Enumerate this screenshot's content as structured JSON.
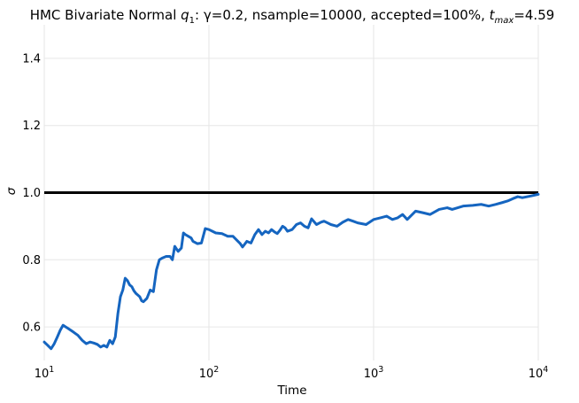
{
  "chart_data": {
    "type": "line",
    "title": {
      "prefix": "HMC Bivariate Normal ",
      "q_base": "q",
      "q_sub": "1",
      "middle": ": γ=0.2, nsample=10000, accepted=100%, ",
      "t_base": "t",
      "t_sub": "max",
      "suffix": "=4.59"
    },
    "xlabel": "Time",
    "ylabel": "σ",
    "xscale": "log",
    "xlim": [
      10,
      10000
    ],
    "ylim": [
      0.5,
      1.5
    ],
    "xticks": [
      {
        "value": 10,
        "base": "10",
        "exp": "1"
      },
      {
        "value": 100,
        "base": "10",
        "exp": "2"
      },
      {
        "value": 1000,
        "base": "10",
        "exp": "3"
      },
      {
        "value": 10000,
        "base": "10",
        "exp": "4"
      }
    ],
    "yticks": [
      {
        "value": 0.6,
        "label": "0.6"
      },
      {
        "value": 0.8,
        "label": "0.8"
      },
      {
        "value": 1.0,
        "label": "1.0"
      },
      {
        "value": 1.2,
        "label": "1.2"
      },
      {
        "value": 1.4,
        "label": "1.4"
      }
    ],
    "grid": true,
    "reference_line": {
      "y": 1.0,
      "color": "#000000"
    },
    "series": [
      {
        "name": "sigma",
        "color": "#1565c0",
        "x": [
          10,
          10.5,
          11,
          11.5,
          12,
          12.5,
          13,
          13.5,
          14,
          15,
          16,
          17,
          18,
          19,
          20,
          21,
          22,
          23,
          24,
          25,
          26,
          27,
          28,
          29,
          30,
          31,
          32,
          33,
          34,
          35,
          36,
          37,
          38,
          39,
          40,
          42,
          44,
          46,
          48,
          50,
          52,
          55,
          58,
          60,
          62,
          65,
          68,
          70,
          72,
          75,
          78,
          80,
          85,
          90,
          95,
          100,
          105,
          110,
          120,
          130,
          140,
          150,
          155,
          160,
          170,
          180,
          190,
          200,
          210,
          220,
          230,
          240,
          250,
          260,
          270,
          280,
          290,
          300,
          320,
          340,
          360,
          380,
          400,
          420,
          450,
          480,
          500,
          550,
          600,
          650,
          700,
          750,
          800,
          900,
          1000,
          1100,
          1200,
          1300,
          1400,
          1500,
          1600,
          1800,
          2000,
          2200,
          2500,
          2800,
          3000,
          3500,
          4000,
          4500,
          5000,
          5500,
          6000,
          6500,
          7000,
          7500,
          8000,
          9000,
          10000
        ],
        "y": [
          0.555,
          0.545,
          0.535,
          0.55,
          0.57,
          0.59,
          0.605,
          0.6,
          0.595,
          0.585,
          0.575,
          0.56,
          0.55,
          0.555,
          0.552,
          0.548,
          0.54,
          0.545,
          0.54,
          0.56,
          0.55,
          0.57,
          0.64,
          0.69,
          0.71,
          0.745,
          0.738,
          0.725,
          0.72,
          0.708,
          0.7,
          0.695,
          0.69,
          0.678,
          0.675,
          0.685,
          0.71,
          0.705,
          0.77,
          0.8,
          0.805,
          0.81,
          0.81,
          0.8,
          0.84,
          0.825,
          0.835,
          0.88,
          0.875,
          0.87,
          0.865,
          0.855,
          0.848,
          0.85,
          0.893,
          0.89,
          0.885,
          0.88,
          0.878,
          0.87,
          0.87,
          0.855,
          0.848,
          0.838,
          0.855,
          0.85,
          0.875,
          0.89,
          0.875,
          0.885,
          0.88,
          0.89,
          0.883,
          0.878,
          0.888,
          0.9,
          0.895,
          0.885,
          0.89,
          0.905,
          0.91,
          0.9,
          0.895,
          0.922,
          0.905,
          0.912,
          0.915,
          0.905,
          0.9,
          0.912,
          0.92,
          0.915,
          0.91,
          0.905,
          0.92,
          0.925,
          0.93,
          0.92,
          0.925,
          0.935,
          0.92,
          0.945,
          0.94,
          0.935,
          0.95,
          0.955,
          0.95,
          0.96,
          0.962,
          0.965,
          0.96,
          0.965,
          0.97,
          0.975,
          0.982,
          0.988,
          0.985,
          0.99,
          0.995
        ]
      }
    ]
  }
}
